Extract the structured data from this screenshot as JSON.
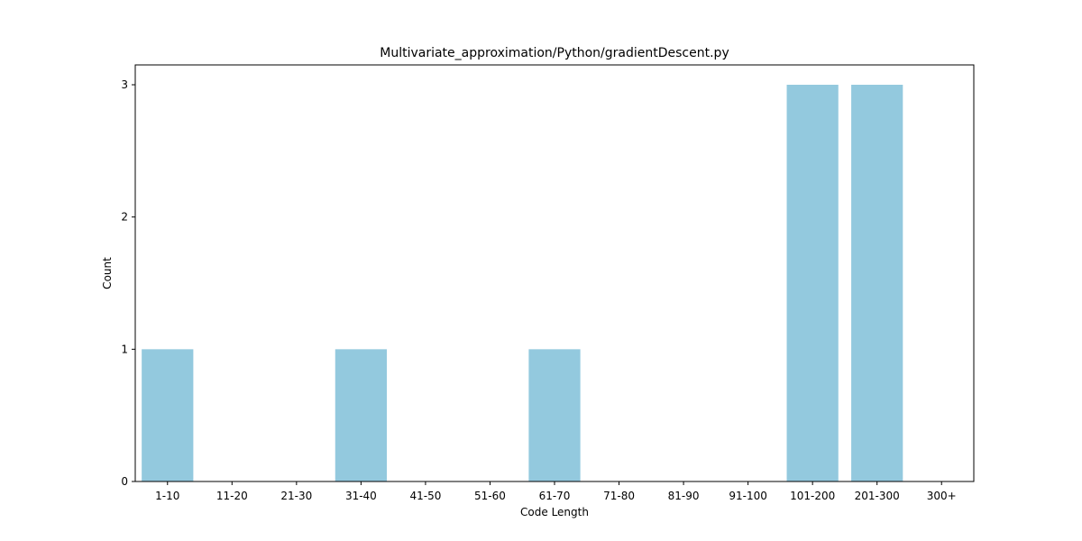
{
  "chart_data": {
    "type": "bar",
    "title": "Multivariate_approximation/Python/gradientDescent.py",
    "xlabel": "Code Length",
    "ylabel": "Count",
    "categories": [
      "1-10",
      "11-20",
      "21-30",
      "31-40",
      "41-50",
      "51-60",
      "61-70",
      "71-80",
      "81-90",
      "91-100",
      "101-200",
      "201-300",
      "300+"
    ],
    "values": [
      1,
      0,
      0,
      1,
      0,
      0,
      1,
      0,
      0,
      0,
      3,
      3,
      0
    ],
    "ylim": [
      0,
      3.15
    ],
    "yticks": [
      0,
      1,
      2,
      3
    ],
    "grid": false,
    "bar_color": "#93c9de"
  }
}
